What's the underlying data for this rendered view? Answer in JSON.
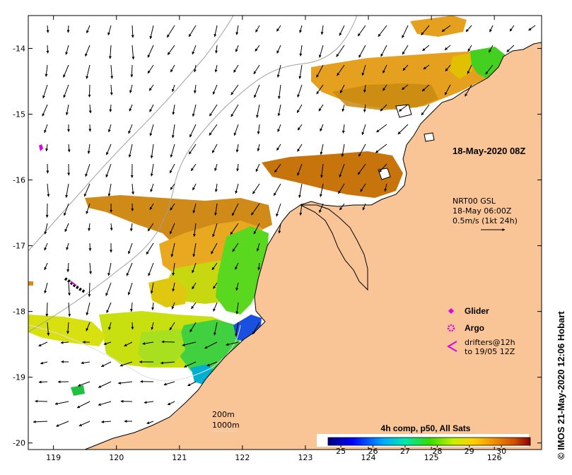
{
  "map": {
    "lon_ticks": [
      "119",
      "120",
      "121",
      "122",
      "123",
      "124",
      "125",
      "126"
    ],
    "lat_ticks": [
      "-14",
      "-15",
      "-16",
      "-17",
      "-18",
      "-19",
      "-20"
    ],
    "lon_range": [
      118.6,
      126.75
    ],
    "lat_range": [
      -20.1,
      -13.5
    ]
  },
  "overlay": {
    "date_title": "18-May-2020 08Z",
    "current_model": "NRT00 GSL",
    "current_time": "18-May 06:00Z",
    "current_scale": "0.5m/s (1kt 24h)",
    "isobath_1": "200m",
    "isobath_2": "1000m",
    "credit": "© IMOS 21-May-2020 12:06 Hobart"
  },
  "legend": {
    "glider": "Glider",
    "argo": "Argo",
    "drifters_line1": "drifters@12h",
    "drifters_line2": "to 19/05 12Z",
    "glider_color": "#e000e0",
    "argo_color": "#e000e0"
  },
  "colorbar": {
    "title": "4h comp, p50, All Sats",
    "tick_labels": [
      "25",
      "26",
      "27",
      "28",
      "29",
      "30"
    ],
    "tick_values": [
      25,
      26,
      27,
      28,
      29,
      30
    ],
    "range": [
      24.6,
      30.9
    ]
  },
  "colors": {
    "land": "#f9c596",
    "coast": "#000000",
    "bathy": "#999999"
  }
}
